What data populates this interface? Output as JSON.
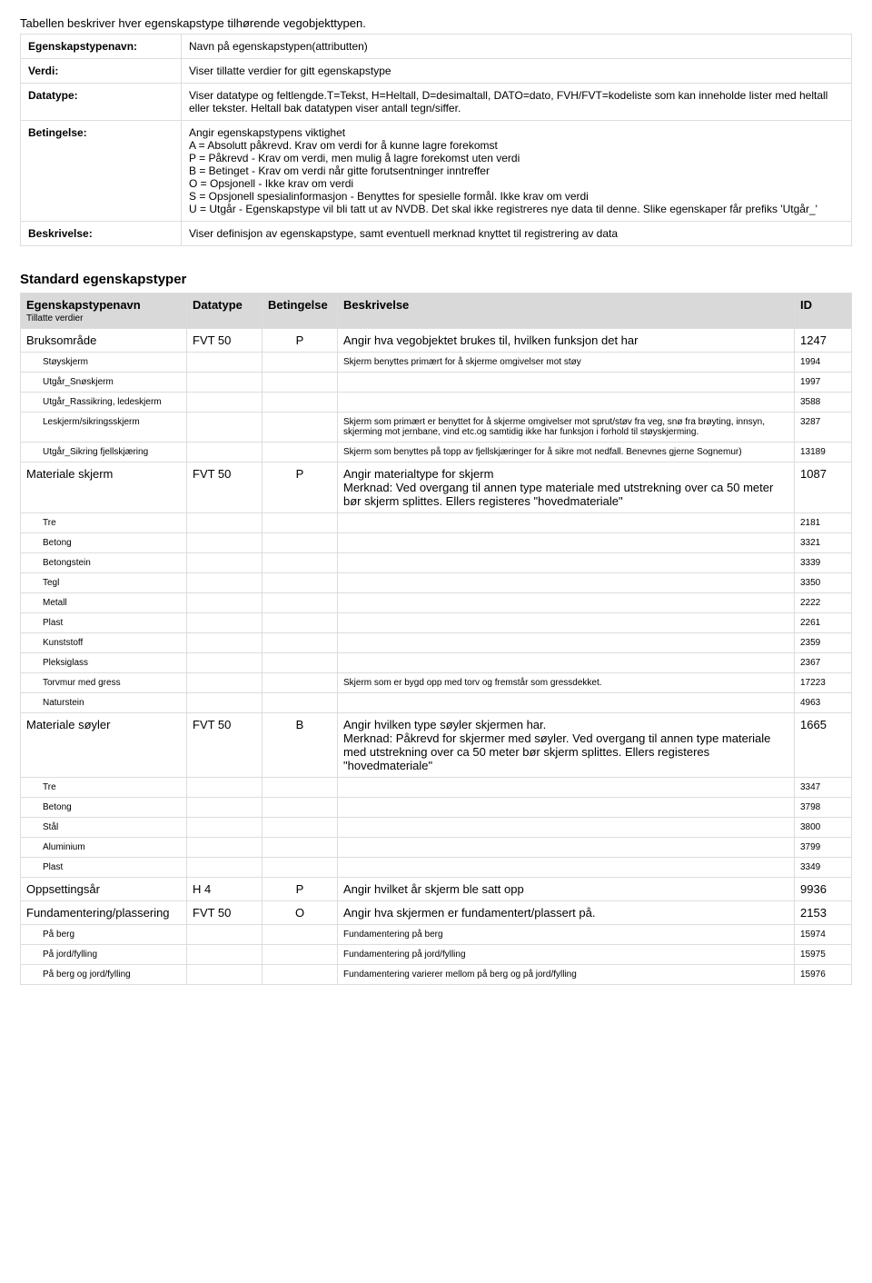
{
  "intro": "Tabellen beskriver hver egenskapstype tilhørende vegobjekttypen.",
  "defs": [
    {
      "label": "Egenskapstypenavn:",
      "value": "Navn på egenskapstypen(attributten)"
    },
    {
      "label": "Verdi:",
      "value": "Viser tillatte verdier for gitt egenskapstype"
    },
    {
      "label": "Datatype:",
      "value": "Viser datatype og feltlengde.T=Tekst, H=Heltall, D=desimaltall, DATO=dato, FVH/FVT=kodeliste som kan inneholde lister med heltall eller tekster. Heltall bak datatypen viser antall tegn/siffer."
    },
    {
      "label": "Betingelse:",
      "value": "Angir egenskapstypens viktighet\nA = Absolutt påkrevd. Krav om verdi for å kunne lagre forekomst\nP = Påkrevd - Krav om verdi, men mulig å lagre forekomst uten verdi\nB = Betinget - Krav om verdi når gitte forutsentninger inntreffer\nO = Opsjonell - Ikke krav om verdi\nS = Opsjonell spesialinformasjon - Benyttes for spesielle formål. Ikke krav om verdi\nU = Utgår - Egenskapstype vil bli tatt ut av NVDB. Det skal ikke registreres nye data til denne. Slike egenskaper får prefiks 'Utgår_'"
    },
    {
      "label": "Beskrivelse:",
      "value": "Viser definisjon av egenskapstype, samt eventuell merknad knyttet til registrering av data"
    }
  ],
  "section_title": "Standard egenskapstyper",
  "columns": {
    "name": "Egenskapstypenavn",
    "name_sub": "Tillatte verdier",
    "datatype": "Datatype",
    "cond": "Betingelse",
    "desc": "Beskrivelse",
    "id": "ID"
  },
  "rows": [
    {
      "type": "parent",
      "name": "Bruksområde",
      "datatype": "FVT 50",
      "cond": "P",
      "desc": "Angir hva vegobjektet brukes til, hvilken funksjon det har",
      "id": "1247"
    },
    {
      "type": "child",
      "name": "Støyskjerm",
      "desc": "Skjerm benyttes primært for å skjerme omgivelser mot støy",
      "id": "1994"
    },
    {
      "type": "child",
      "name": "Utgår_Snøskjerm",
      "desc": "",
      "id": "1997"
    },
    {
      "type": "child",
      "name": "Utgår_Rassikring, ledeskjerm",
      "desc": "",
      "id": "3588"
    },
    {
      "type": "child",
      "name": "Leskjerm/sikringsskjerm",
      "desc": "Skjerm som primært er benyttet for å skjerme omgivelser mot sprut/støv fra veg, snø fra brøyting, innsyn, skjerming mot jernbane, vind etc.og samtidig ikke har funksjon i forhold til støyskjerming.",
      "id": "3287"
    },
    {
      "type": "child",
      "name": "Utgår_Sikring fjellskjæring",
      "desc": "Skjerm som benyttes på topp av fjellskjæringer for å sikre mot nedfall. Benevnes gjerne Sognemur)",
      "id": "13189"
    },
    {
      "type": "parent",
      "name": "Materiale skjerm",
      "datatype": "FVT 50",
      "cond": "P",
      "desc": "Angir materialtype for skjerm\nMerknad: Ved overgang til annen type materiale med utstrekning over ca 50 meter bør skjerm splittes. Ellers registeres \"hovedmateriale\"",
      "id": "1087"
    },
    {
      "type": "child",
      "name": "Tre",
      "desc": "",
      "id": "2181"
    },
    {
      "type": "child",
      "name": "Betong",
      "desc": "",
      "id": "3321"
    },
    {
      "type": "child",
      "name": "Betongstein",
      "desc": "",
      "id": "3339"
    },
    {
      "type": "child",
      "name": "Tegl",
      "desc": "",
      "id": "3350"
    },
    {
      "type": "child",
      "name": "Metall",
      "desc": "",
      "id": "2222"
    },
    {
      "type": "child",
      "name": "Plast",
      "desc": "",
      "id": "2261"
    },
    {
      "type": "child",
      "name": "Kunststoff",
      "desc": "",
      "id": "2359"
    },
    {
      "type": "child",
      "name": "Pleksiglass",
      "desc": "",
      "id": "2367"
    },
    {
      "type": "child",
      "name": "Torvmur med gress",
      "desc": "Skjerm som er bygd opp med torv og fremstår som gressdekket.",
      "id": "17223"
    },
    {
      "type": "child",
      "name": "Naturstein",
      "desc": "",
      "id": "4963"
    },
    {
      "type": "parent",
      "name": "Materiale søyler",
      "datatype": "FVT 50",
      "cond": "B",
      "desc": "Angir hvilken type søyler skjermen har.\nMerknad: Påkrevd for skjermer med søyler. Ved overgang til annen type materiale med utstrekning over ca 50 meter bør skjerm splittes. Ellers registeres \"hovedmateriale\"",
      "id": "1665"
    },
    {
      "type": "child",
      "name": "Tre",
      "desc": "",
      "id": "3347"
    },
    {
      "type": "child",
      "name": "Betong",
      "desc": "",
      "id": "3798"
    },
    {
      "type": "child",
      "name": "Stål",
      "desc": "",
      "id": "3800"
    },
    {
      "type": "child",
      "name": "Aluminium",
      "desc": "",
      "id": "3799"
    },
    {
      "type": "child",
      "name": "Plast",
      "desc": "",
      "id": "3349"
    },
    {
      "type": "parent",
      "name": "Oppsettingsår",
      "datatype": "H 4",
      "cond": "P",
      "desc": "Angir hvilket år skjerm ble satt opp",
      "id": "9936"
    },
    {
      "type": "parent",
      "name": "Fundamentering/plassering",
      "datatype": "FVT 50",
      "cond": "O",
      "desc": "Angir hva skjermen er fundamentert/plassert på.",
      "id": "2153"
    },
    {
      "type": "child",
      "name": "På berg",
      "desc": "Fundamentering på berg",
      "id": "15974"
    },
    {
      "type": "child",
      "name": "På jord/fylling",
      "desc": "Fundamentering på jord/fylling",
      "id": "15975"
    },
    {
      "type": "child",
      "name": "På berg og jord/fylling",
      "desc": "Fundamentering varierer mellom på berg og på jord/fylling",
      "id": "15976"
    }
  ]
}
